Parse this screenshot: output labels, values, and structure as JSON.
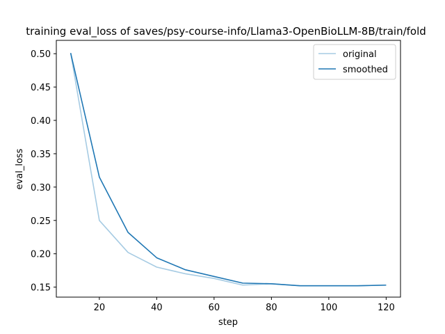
{
  "chart_data": {
    "type": "line",
    "title": "training eval_loss of saves/psy-course-info/Llama3-OpenBioLLM-8B/train/fold",
    "xlabel": "step",
    "ylabel": "eval_loss",
    "xlim": [
      5,
      125
    ],
    "ylim": [
      0.135,
      0.52
    ],
    "xticks": [
      20,
      40,
      60,
      80,
      100,
      120
    ],
    "yticks": [
      0.15,
      0.2,
      0.25,
      0.3,
      0.35,
      0.4,
      0.45,
      0.5
    ],
    "ytick_labels": [
      "0.15",
      "0.20",
      "0.25",
      "0.30",
      "0.35",
      "0.40",
      "0.45",
      "0.50"
    ],
    "grid": false,
    "legend_position": "upper right",
    "x": [
      10,
      20,
      30,
      40,
      50,
      60,
      70,
      80,
      90,
      100,
      110,
      120
    ],
    "series": [
      {
        "name": "original",
        "color": "#a6cbe3",
        "values": [
          0.501,
          0.25,
          0.202,
          0.18,
          0.17,
          0.163,
          0.153,
          0.155,
          0.152,
          0.152,
          0.152,
          0.153
        ]
      },
      {
        "name": "smoothed",
        "color": "#1f77b4",
        "values": [
          0.501,
          0.315,
          0.232,
          0.194,
          0.176,
          0.166,
          0.156,
          0.155,
          0.152,
          0.152,
          0.152,
          0.153
        ]
      }
    ]
  }
}
